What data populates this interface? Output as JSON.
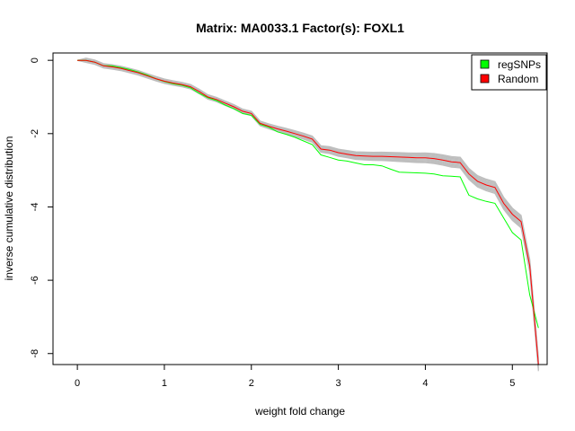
{
  "chart_data": {
    "type": "line",
    "title": "Matrix: MA0033.1 Factor(s): FOXL1",
    "xlabel": "weight fold change",
    "ylabel": "inverse cumulative distribution",
    "xlim": [
      -0.28,
      5.4
    ],
    "ylim": [
      -8.3,
      0.2
    ],
    "xticks": [
      0,
      1,
      2,
      3,
      4,
      5
    ],
    "yticks": [
      0,
      -2,
      -4,
      -6,
      -8
    ],
    "grid": false,
    "legend_position": "top-right",
    "background_series": {
      "name": "",
      "color": "#bebebe",
      "count": 12,
      "spread": 0.06
    },
    "series": [
      {
        "name": "regSNPs",
        "color": "#00ff00",
        "x": [
          0,
          0.1,
          0.2,
          0.3,
          0.4,
          0.5,
          0.6,
          0.7,
          0.8,
          0.9,
          1.0,
          1.1,
          1.2,
          1.3,
          1.4,
          1.5,
          1.6,
          1.7,
          1.8,
          1.9,
          2.0,
          2.1,
          2.2,
          2.3,
          2.4,
          2.5,
          2.6,
          2.7,
          2.8,
          2.9,
          3.0,
          3.1,
          3.2,
          3.3,
          3.4,
          3.5,
          3.6,
          3.7,
          3.8,
          3.9,
          4.0,
          4.1,
          4.2,
          4.3,
          4.4,
          4.5,
          4.6,
          4.7,
          4.8,
          4.9,
          5.0,
          5.1,
          5.2,
          5.3
        ],
        "y": [
          0,
          0,
          -0.05,
          -0.15,
          -0.15,
          -0.2,
          -0.25,
          -0.32,
          -0.4,
          -0.5,
          -0.58,
          -0.64,
          -0.68,
          -0.75,
          -0.9,
          -1.02,
          -1.1,
          -1.22,
          -1.32,
          -1.45,
          -1.5,
          -1.75,
          -1.82,
          -1.95,
          -2.02,
          -2.1,
          -2.2,
          -2.3,
          -2.58,
          -2.65,
          -2.72,
          -2.75,
          -2.8,
          -2.85,
          -2.85,
          -2.88,
          -2.97,
          -3.05,
          -3.06,
          -3.07,
          -3.08,
          -3.1,
          -3.15,
          -3.16,
          -3.18,
          -3.68,
          -3.78,
          -3.85,
          -3.9,
          -4.3,
          -4.7,
          -4.9,
          -6.4,
          -7.3
        ]
      },
      {
        "name": "Random",
        "color": "#ff0000",
        "x": [
          0,
          0.1,
          0.2,
          0.3,
          0.4,
          0.5,
          0.6,
          0.7,
          0.8,
          0.9,
          1.0,
          1.1,
          1.2,
          1.3,
          1.4,
          1.5,
          1.6,
          1.7,
          1.8,
          1.9,
          2.0,
          2.1,
          2.2,
          2.3,
          2.4,
          2.5,
          2.6,
          2.7,
          2.8,
          2.9,
          3.0,
          3.1,
          3.2,
          3.3,
          3.4,
          3.5,
          3.6,
          3.7,
          3.8,
          3.9,
          4.0,
          4.1,
          4.2,
          4.3,
          4.4,
          4.5,
          4.6,
          4.7,
          4.8,
          4.9,
          5.0,
          5.1,
          5.2,
          5.3
        ],
        "y": [
          0,
          0,
          -0.05,
          -0.15,
          -0.18,
          -0.22,
          -0.28,
          -0.34,
          -0.42,
          -0.5,
          -0.57,
          -0.62,
          -0.66,
          -0.72,
          -0.85,
          -1.0,
          -1.07,
          -1.17,
          -1.27,
          -1.39,
          -1.45,
          -1.72,
          -1.8,
          -1.87,
          -1.93,
          -2.0,
          -2.07,
          -2.15,
          -2.42,
          -2.45,
          -2.52,
          -2.56,
          -2.6,
          -2.61,
          -2.62,
          -2.62,
          -2.63,
          -2.64,
          -2.65,
          -2.66,
          -2.66,
          -2.68,
          -2.72,
          -2.77,
          -2.79,
          -3.1,
          -3.3,
          -3.4,
          -3.47,
          -3.9,
          -4.2,
          -4.4,
          -5.6,
          -8.3
        ]
      }
    ]
  }
}
